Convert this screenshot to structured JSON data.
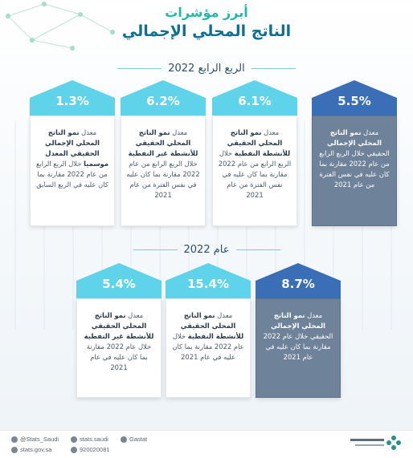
{
  "header": {
    "line1": "أبرز مؤشرات",
    "line2": "الناتج المحلي الإجمالي"
  },
  "section_q4": {
    "title": "الربع الرابع 2022"
  },
  "section_year": {
    "title": "عام 2022"
  },
  "q4_cards": [
    {
      "value": "5.5%",
      "prefix": "معدل ",
      "bold": "نمو الناتج المحلي الإجمالي",
      "rest": " الحقيقي خلال الربع الرابع من عام 2022 مقارنة بما كان عليه في نفس الفترة من عام 2021"
    },
    {
      "value": "6.1%",
      "prefix": "معدل ",
      "bold": "نمو الناتج المحلي الحقيقي للأنشطة النفطية",
      "rest": " خلال الربع الرابع من عام 2022 مقارنة بما كان عليه في نفس الفترة من عام 2021"
    },
    {
      "value": "6.2%",
      "prefix": "معدل ",
      "bold": "نمو الناتج المحلي الحقيقي للأنشطة غير النفطية",
      "rest": " خلال الربع الرابع من عام 2022 مقارنة بما كان عليه في نفس الفترة من عام 2021"
    },
    {
      "value": "1.3%",
      "prefix": "معدل ",
      "bold": "نمو الناتج المحلي الإجمالي الحقيقي المعدل موسميا",
      "rest": " خلال الربع الرابع من عام 2022 مقارنة بما كان عليه في الربع السابق"
    }
  ],
  "year_cards": [
    {
      "value": "8.7%",
      "prefix": "معدل ",
      "bold": "نمو الناتج المحلي الإجمالي",
      "rest": " الحقيقي خلال عام 2022 مقارنة بما كان عليه في عام 2021"
    },
    {
      "value": "15.4%",
      "prefix": "معدل ",
      "bold": "نمو الناتج المحلي الحقيقي للأنشطة النفطية",
      "rest": " خلال عام 2022 مقارنة بما كان عليه في عام 2021"
    },
    {
      "value": "5.4%",
      "prefix": "معدل ",
      "bold": "نمو الناتج المحلي الحقيقي للأنشطة غير النفطية",
      "rest": " خلال عام 2022 مقارنة بما كان عليه في عام 2021"
    }
  ],
  "footer": {
    "twitter": "@Stats_Saudi",
    "web": "stats.gov.sa",
    "facebook": "stats.saudi",
    "phone": "920020081",
    "instagram": "Gastat"
  },
  "colors": {
    "dark": "#3a6fb8",
    "light": "#5fd3ea",
    "teal": "#23b8a8"
  }
}
